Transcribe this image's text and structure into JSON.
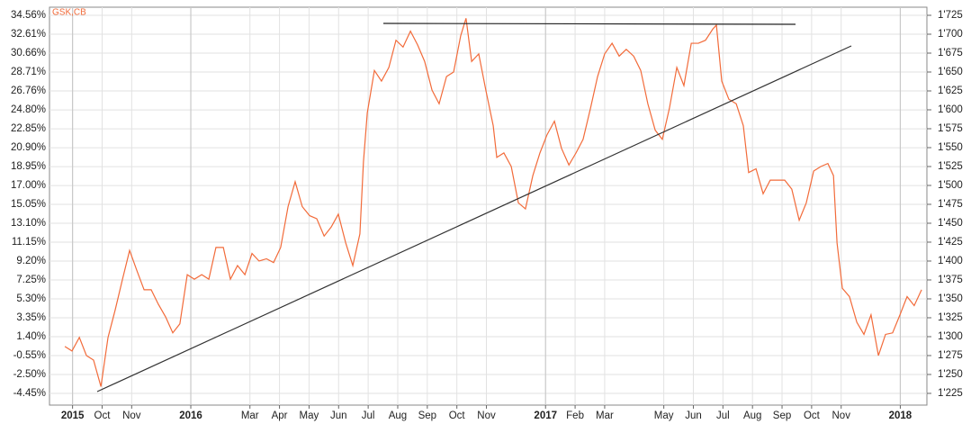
{
  "chart_data": {
    "type": "line",
    "x": [
      7.74,
      7.98,
      8.23,
      8.47,
      8.71,
      8.96,
      9.2,
      9.44,
      9.69,
      9.93,
      10.17,
      10.42,
      10.66,
      10.9,
      11.15,
      11.39,
      11.63,
      11.88,
      12.12,
      12.37,
      12.61,
      12.85,
      13.1,
      13.34,
      13.58,
      13.83,
      14.07,
      14.31,
      14.56,
      14.8,
      15.04,
      15.29,
      15.53,
      15.77,
      16.02,
      16.26,
      16.51,
      16.75,
      16.99,
      17.24,
      17.48,
      17.72,
      17.84,
      17.97,
      18.21,
      18.45,
      18.7,
      18.94,
      19.18,
      19.43,
      19.67,
      19.91,
      20.16,
      20.4,
      20.65,
      20.89,
      21.13,
      21.31,
      21.5,
      21.74,
      21.98,
      22.23,
      22.35,
      22.59,
      22.84,
      23.08,
      23.32,
      23.57,
      23.81,
      24.05,
      24.3,
      24.54,
      24.79,
      25.03,
      25.27,
      25.52,
      25.76,
      26.0,
      26.25,
      26.49,
      26.73,
      26.98,
      27.22,
      27.46,
      27.71,
      27.95,
      28.19,
      28.44,
      28.68,
      28.93,
      29.17,
      29.41,
      29.66,
      29.78,
      29.96,
      30.2,
      30.45,
      30.69,
      30.87,
      31.12,
      31.36,
      31.6,
      31.85,
      32.09,
      32.33,
      32.58,
      32.82,
      33.07,
      33.31,
      33.55,
      33.74,
      33.86,
      34.04,
      34.28,
      34.53,
      34.77,
      35.01,
      35.26,
      35.5,
      35.74,
      35.99,
      36.23,
      36.47,
      36.72
    ],
    "series": [
      {
        "name": "GSK,CB",
        "color": "#f26b3a",
        "axis": "y2",
        "values": [
          1287,
          1281,
          1299,
          1275,
          1269,
          1234,
          1299,
          1335,
          1376,
          1414,
          1388,
          1362,
          1362,
          1343,
          1326,
          1305,
          1317,
          1382,
          1376,
          1382,
          1376,
          1418,
          1418,
          1376,
          1394,
          1382,
          1410,
          1400,
          1403,
          1398,
          1418,
          1472,
          1505,
          1472,
          1460,
          1456,
          1433,
          1445,
          1462,
          1424,
          1394,
          1436,
          1531,
          1596,
          1652,
          1638,
          1656,
          1692,
          1683,
          1704,
          1686,
          1664,
          1626,
          1608,
          1644,
          1650,
          1698,
          1721,
          1664,
          1674,
          1626,
          1579,
          1537,
          1543,
          1525,
          1477,
          1469,
          1513,
          1543,
          1567,
          1585,
          1549,
          1527,
          1543,
          1561,
          1602,
          1644,
          1674,
          1688,
          1671,
          1680,
          1671,
          1652,
          1608,
          1573,
          1561,
          1602,
          1656,
          1632,
          1688,
          1688,
          1692,
          1707,
          1712,
          1638,
          1614,
          1608,
          1579,
          1517,
          1522,
          1489,
          1507,
          1507,
          1507,
          1495,
          1454,
          1477,
          1519,
          1525,
          1529,
          1513,
          1424,
          1364,
          1353,
          1319,
          1303,
          1329,
          1275,
          1303,
          1305,
          1329,
          1353,
          1341,
          1362
        ]
      }
    ],
    "xlim": [
      7.22,
      36.9
    ],
    "xticks": [
      {
        "value": 8,
        "label": "2015"
      },
      {
        "value": 9,
        "label": "Oct"
      },
      {
        "value": 10,
        "label": "Nov"
      },
      {
        "value": 12,
        "label": "2016"
      },
      {
        "value": 14,
        "label": "Mar"
      },
      {
        "value": 15,
        "label": "Apr"
      },
      {
        "value": 16,
        "label": "May"
      },
      {
        "value": 17,
        "label": "Jun"
      },
      {
        "value": 18,
        "label": "Jul"
      },
      {
        "value": 19,
        "label": "Aug"
      },
      {
        "value": 20,
        "label": "Sep"
      },
      {
        "value": 21,
        "label": "Oct"
      },
      {
        "value": 22,
        "label": "Nov"
      },
      {
        "value": 24,
        "label": "2017"
      },
      {
        "value": 25,
        "label": "Feb"
      },
      {
        "value": 26,
        "label": "Mar"
      },
      {
        "value": 28,
        "label": "May"
      },
      {
        "value": 29,
        "label": "Jun"
      },
      {
        "value": 30,
        "label": "Jul"
      },
      {
        "value": 31,
        "label": "Aug"
      },
      {
        "value": 32,
        "label": "Sep"
      },
      {
        "value": 33,
        "label": "Oct"
      },
      {
        "value": 34,
        "label": "Nov"
      },
      {
        "value": 36,
        "label": "2018"
      }
    ],
    "ylim": [
      -5.66,
      35.4
    ],
    "yticks": [
      {
        "value": 34.56,
        "label": "34.56%"
      },
      {
        "value": 32.61,
        "label": "32.61%"
      },
      {
        "value": 30.66,
        "label": "30.66%"
      },
      {
        "value": 28.71,
        "label": "28.71%"
      },
      {
        "value": 26.76,
        "label": "26.76%"
      },
      {
        "value": 24.8,
        "label": "24.80%"
      },
      {
        "value": 22.85,
        "label": "22.85%"
      },
      {
        "value": 20.9,
        "label": "20.90%"
      },
      {
        "value": 18.95,
        "label": "18.95%"
      },
      {
        "value": 17.0,
        "label": "17.00%"
      },
      {
        "value": 15.05,
        "label": "15.05%"
      },
      {
        "value": 13.1,
        "label": "13.10%"
      },
      {
        "value": 11.15,
        "label": "11.15%"
      },
      {
        "value": 9.2,
        "label": "9.20%"
      },
      {
        "value": 7.25,
        "label": "7.25%"
      },
      {
        "value": 5.3,
        "label": "5.30%"
      },
      {
        "value": 3.35,
        "label": "3.35%"
      },
      {
        "value": 1.4,
        "label": "1.40%"
      },
      {
        "value": -0.55,
        "label": "-0.55%"
      },
      {
        "value": -2.5,
        "label": "-2.50%"
      },
      {
        "value": -4.45,
        "label": "-4.45%"
      }
    ],
    "y2lim": [
      1209.5,
      1735.7
    ],
    "y2ticks": [
      {
        "value": 1725,
        "label": "1'725"
      },
      {
        "value": 1700,
        "label": "1'700"
      },
      {
        "value": 1675,
        "label": "1'675"
      },
      {
        "value": 1650,
        "label": "1'650"
      },
      {
        "value": 1625,
        "label": "1'625"
      },
      {
        "value": 1600,
        "label": "1'600"
      },
      {
        "value": 1575,
        "label": "1'575"
      },
      {
        "value": 1550,
        "label": "1'550"
      },
      {
        "value": 1525,
        "label": "1'525"
      },
      {
        "value": 1500,
        "label": "1'500"
      },
      {
        "value": 1475,
        "label": "1'475"
      },
      {
        "value": 1450,
        "label": "1'450"
      },
      {
        "value": 1425,
        "label": "1'425"
      },
      {
        "value": 1400,
        "label": "1'400"
      },
      {
        "value": 1375,
        "label": "1'375"
      },
      {
        "value": 1350,
        "label": "1'350"
      },
      {
        "value": 1325,
        "label": "1'325"
      },
      {
        "value": 1300,
        "label": "1'300"
      },
      {
        "value": 1275,
        "label": "1'275"
      },
      {
        "value": 1250,
        "label": "1'250"
      },
      {
        "value": 1225,
        "label": "1'225"
      }
    ],
    "grid": true
  }
}
